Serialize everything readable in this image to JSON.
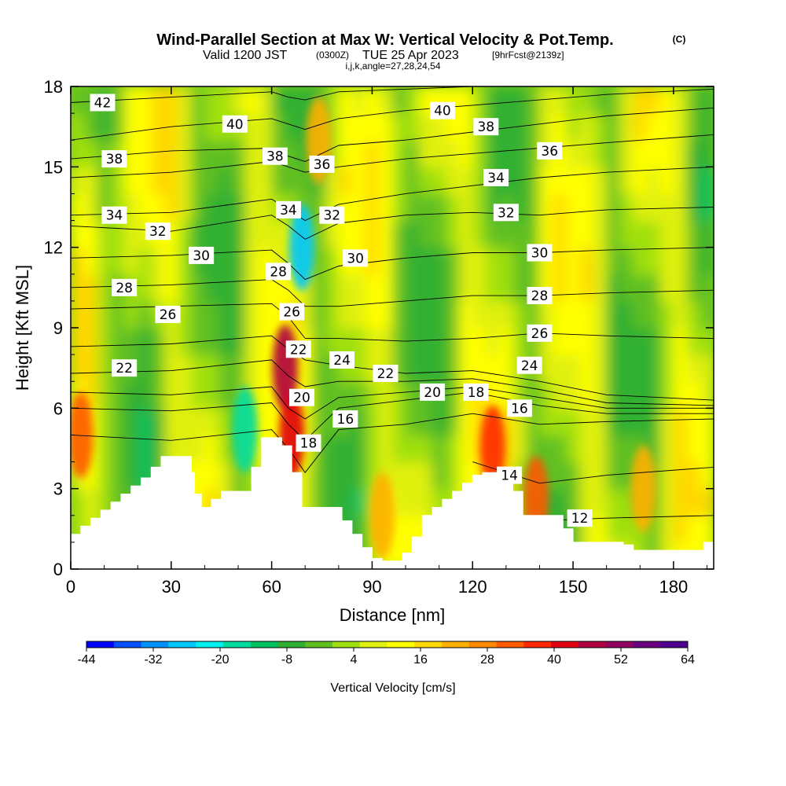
{
  "title": {
    "main": "Wind-Parallel Section at Max W: Vertical Velocity & Pot.Temp.",
    "copyright": "(C)",
    "valid_prefix": "Valid 1200 JST",
    "valid_utc": "(0300Z)",
    "valid_date": "TUE 25 Apr 2023",
    "forecast": "[9hrFcst@2139z]",
    "grid_info": "i,j,k,angle=27,28,24,54"
  },
  "chart_data": {
    "type": "heatmap",
    "xlabel": "Distance [nm]",
    "ylabel": "Height [Kft MSL]",
    "xlim": [
      0,
      192
    ],
    "ylim": [
      0,
      18
    ],
    "xticks": [
      0,
      30,
      60,
      90,
      120,
      150,
      180
    ],
    "yticks": [
      0,
      3,
      6,
      9,
      12,
      15,
      18
    ],
    "colorbar": {
      "label": "Vertical Velocity [cm/s]",
      "ticks": [
        -44,
        -32,
        -20,
        -8,
        4,
        16,
        28,
        40,
        52,
        64
      ],
      "range": [
        -44,
        64
      ],
      "colors": [
        "#0000ff",
        "#0050ff",
        "#0090ff",
        "#00c8ff",
        "#00f0f0",
        "#00dca0",
        "#00c060",
        "#30b030",
        "#60c020",
        "#a0e010",
        "#e0f010",
        "#ffff00",
        "#ffd800",
        "#ffb000",
        "#ff8800",
        "#ff5a00",
        "#ff2800",
        "#e00010",
        "#b00040",
        "#900060",
        "#6a0080",
        "#500090"
      ]
    },
    "terrain": {
      "x": [
        0,
        3,
        6,
        9,
        12,
        15,
        18,
        21,
        24,
        27,
        30,
        33,
        36,
        37,
        39,
        42,
        45,
        48,
        51,
        54,
        57,
        60,
        63,
        66,
        69,
        72,
        75,
        78,
        81,
        84,
        87,
        90,
        93,
        96,
        99,
        102,
        105,
        108,
        111,
        114,
        117,
        120,
        123,
        126,
        129,
        132,
        135,
        138,
        141,
        144,
        147,
        150,
        153,
        156,
        159,
        162,
        165,
        168,
        171,
        174,
        177,
        180,
        183,
        186,
        189,
        192
      ],
      "height": [
        1.3,
        1.6,
        1.9,
        2.2,
        2.5,
        2.8,
        3.1,
        3.4,
        3.8,
        4.2,
        4.2,
        4.2,
        3.6,
        2.8,
        2.3,
        2.6,
        2.9,
        2.9,
        2.9,
        3.8,
        4.9,
        4.9,
        4.6,
        3.6,
        2.3,
        2.3,
        2.3,
        2.3,
        1.8,
        1.3,
        0.8,
        0.4,
        0.3,
        0.3,
        0.6,
        1.2,
        2.0,
        2.3,
        2.6,
        2.9,
        3.2,
        3.5,
        3.6,
        3.6,
        3.6,
        2.9,
        2.0,
        2.0,
        2.0,
        2.0,
        1.5,
        1.0,
        1.0,
        1.0,
        1.0,
        1.0,
        0.9,
        0.7,
        0.7,
        0.7,
        0.7,
        0.7,
        0.7,
        0.7,
        1.0,
        1.0
      ]
    },
    "wind_cores": [
      {
        "x": 64,
        "y": 7.5,
        "value": 45
      },
      {
        "x": 66,
        "y": 5.0,
        "value": 40
      },
      {
        "x": 69,
        "y": 12.0,
        "value": -28
      },
      {
        "x": 74,
        "y": 16.0,
        "value": 24
      },
      {
        "x": 126,
        "y": 4.5,
        "value": 36
      },
      {
        "x": 139,
        "y": 2.6,
        "value": 30
      },
      {
        "x": 3,
        "y": 5.0,
        "value": 30
      },
      {
        "x": 93,
        "y": 2.0,
        "value": 24
      },
      {
        "x": 171,
        "y": 3.0,
        "value": 24
      },
      {
        "x": 52,
        "y": 5.2,
        "value": -18
      }
    ],
    "isentropes": {
      "x": [
        0,
        30,
        60,
        65,
        70,
        80,
        100,
        120,
        140,
        160,
        192
      ],
      "levels": [
        {
          "theta": 12,
          "y": [
            null,
            null,
            null,
            null,
            null,
            null,
            null,
            null,
            1.8,
            1.9,
            2.0
          ]
        },
        {
          "theta": 14,
          "y": [
            null,
            null,
            null,
            null,
            null,
            null,
            null,
            4.0,
            3.2,
            3.5,
            3.8
          ]
        },
        {
          "theta": 16,
          "y": [
            5.0,
            4.8,
            5.2,
            4.5,
            3.6,
            5.2,
            5.4,
            5.8,
            5.4,
            5.5,
            5.6
          ]
        },
        {
          "theta": 18,
          "y": [
            6.0,
            5.9,
            6.2,
            5.4,
            4.8,
            6.0,
            6.3,
            6.6,
            6.1,
            5.8,
            5.8
          ]
        },
        {
          "theta": 20,
          "y": [
            6.6,
            6.5,
            6.8,
            6.0,
            5.6,
            6.4,
            6.6,
            6.8,
            6.4,
            6.0,
            6.0
          ]
        },
        {
          "theta": 22,
          "y": [
            7.3,
            7.4,
            7.8,
            7.2,
            6.8,
            7.0,
            7.0,
            7.1,
            6.7,
            6.2,
            6.1
          ]
        },
        {
          "theta": 24,
          "y": [
            8.3,
            8.4,
            8.7,
            8.2,
            7.8,
            7.6,
            7.3,
            7.4,
            7.0,
            6.5,
            6.3
          ]
        },
        {
          "theta": 26,
          "y": [
            9.7,
            9.8,
            9.9,
            9.4,
            8.6,
            8.6,
            8.5,
            8.6,
            8.8,
            8.7,
            8.6
          ]
        },
        {
          "theta": 28,
          "y": [
            10.5,
            10.6,
            10.8,
            10.4,
            9.8,
            9.8,
            10.0,
            10.2,
            10.2,
            10.3,
            10.4
          ]
        },
        {
          "theta": 30,
          "y": [
            11.6,
            11.7,
            11.9,
            11.4,
            10.8,
            11.3,
            11.6,
            11.8,
            11.8,
            11.9,
            12.0
          ]
        },
        {
          "theta": 32,
          "y": [
            12.8,
            12.6,
            13.2,
            12.8,
            12.3,
            12.9,
            13.2,
            13.3,
            13.2,
            13.4,
            13.5
          ]
        },
        {
          "theta": 34,
          "y": [
            13.2,
            13.3,
            13.8,
            13.4,
            13.0,
            13.6,
            14.0,
            14.3,
            14.6,
            14.8,
            15.0
          ]
        },
        {
          "theta": 36,
          "y": [
            14.6,
            14.8,
            15.2,
            15.0,
            14.8,
            15.0,
            15.3,
            15.5,
            15.7,
            15.9,
            16.2
          ]
        },
        {
          "theta": 38,
          "y": [
            15.3,
            15.6,
            15.7,
            15.4,
            15.2,
            15.8,
            16.0,
            16.3,
            16.6,
            16.9,
            17.2
          ]
        },
        {
          "theta": 40,
          "y": [
            16.0,
            16.5,
            16.8,
            16.6,
            16.4,
            16.8,
            17.1,
            17.3,
            17.5,
            17.7,
            17.9
          ]
        },
        {
          "theta": 42,
          "y": [
            17.4,
            17.6,
            17.8,
            17.6,
            17.5,
            17.8,
            17.9,
            18.0,
            18.0,
            18.0,
            18.0
          ]
        }
      ]
    },
    "contour_labels": [
      {
        "text": "42",
        "x": 9.5,
        "y": 17.4
      },
      {
        "text": "40",
        "x": 49,
        "y": 16.6
      },
      {
        "text": "38",
        "x": 13,
        "y": 15.3
      },
      {
        "text": "38",
        "x": 61,
        "y": 15.4
      },
      {
        "text": "36",
        "x": 75,
        "y": 15.1
      },
      {
        "text": "40",
        "x": 111,
        "y": 17.1
      },
      {
        "text": "38",
        "x": 124,
        "y": 16.5
      },
      {
        "text": "36",
        "x": 143,
        "y": 15.6
      },
      {
        "text": "34",
        "x": 13,
        "y": 13.2
      },
      {
        "text": "34",
        "x": 65,
        "y": 13.4
      },
      {
        "text": "32",
        "x": 78,
        "y": 13.2
      },
      {
        "text": "34",
        "x": 127,
        "y": 14.6
      },
      {
        "text": "32",
        "x": 130,
        "y": 13.3
      },
      {
        "text": "32",
        "x": 26,
        "y": 12.6
      },
      {
        "text": "30",
        "x": 39,
        "y": 11.7
      },
      {
        "text": "30",
        "x": 85,
        "y": 11.6
      },
      {
        "text": "30",
        "x": 140,
        "y": 11.8
      },
      {
        "text": "28",
        "x": 16,
        "y": 10.5
      },
      {
        "text": "28",
        "x": 62,
        "y": 11.1
      },
      {
        "text": "28",
        "x": 140,
        "y": 10.2
      },
      {
        "text": "26",
        "x": 29,
        "y": 9.5
      },
      {
        "text": "26",
        "x": 66,
        "y": 9.6
      },
      {
        "text": "26",
        "x": 140,
        "y": 8.8
      },
      {
        "text": "22",
        "x": 16,
        "y": 7.5
      },
      {
        "text": "22",
        "x": 68,
        "y": 8.2
      },
      {
        "text": "24",
        "x": 81,
        "y": 7.8
      },
      {
        "text": "22",
        "x": 94,
        "y": 7.3
      },
      {
        "text": "20",
        "x": 108,
        "y": 6.6
      },
      {
        "text": "18",
        "x": 121,
        "y": 6.6
      },
      {
        "text": "24",
        "x": 137,
        "y": 7.6
      },
      {
        "text": "20",
        "x": 69,
        "y": 6.4
      },
      {
        "text": "16",
        "x": 82,
        "y": 5.6
      },
      {
        "text": "16",
        "x": 134,
        "y": 6.0
      },
      {
        "text": "18",
        "x": 71,
        "y": 4.7
      },
      {
        "text": "14",
        "x": 131,
        "y": 3.5
      },
      {
        "text": "12",
        "x": 152,
        "y": 1.9
      }
    ]
  }
}
